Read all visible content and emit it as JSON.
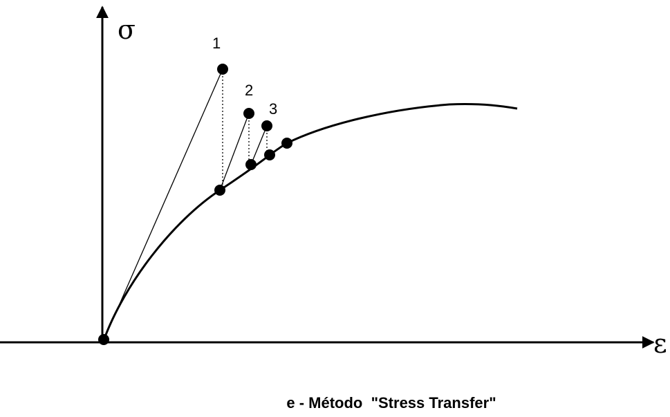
{
  "axes": {
    "y_label": "σ",
    "x_label": "ε"
  },
  "points": [
    {
      "label": "1"
    },
    {
      "label": "2"
    },
    {
      "label": "3"
    }
  ],
  "caption": "e - Método  \"Stress Transfer\""
}
